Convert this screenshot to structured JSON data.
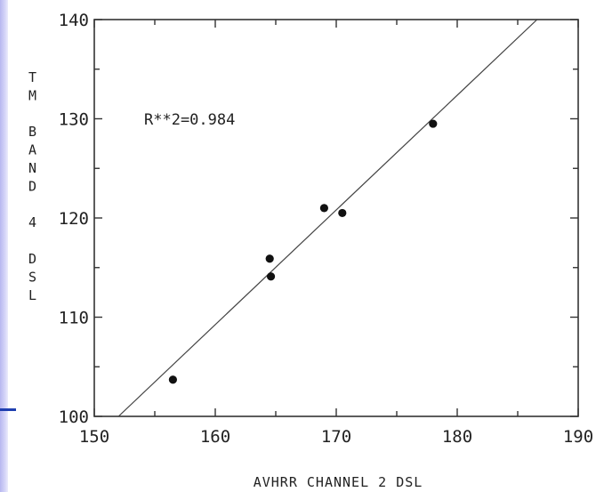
{
  "chart_data": {
    "type": "scatter",
    "title": "",
    "xlabel": "AVHRR CHANNEL 2 DSL",
    "ylabel": "TM BAND 4 DSL",
    "ylabel_lines": [
      "T",
      "M",
      "",
      "B",
      "A",
      "N",
      "D",
      "",
      "4",
      "",
      "D",
      "S",
      "L"
    ],
    "xlim": [
      150,
      190
    ],
    "ylim": [
      100,
      140
    ],
    "x_ticks": [
      150,
      160,
      170,
      180,
      190
    ],
    "y_ticks": [
      100,
      110,
      120,
      130,
      140
    ],
    "grid": false,
    "annotation": "R**2=0.984",
    "points": [
      {
        "x": 156.5,
        "y": 103.7
      },
      {
        "x": 164.5,
        "y": 115.9
      },
      {
        "x": 164.6,
        "y": 114.1
      },
      {
        "x": 169.0,
        "y": 121.0
      },
      {
        "x": 170.5,
        "y": 120.5
      },
      {
        "x": 178.0,
        "y": 129.5
      }
    ],
    "fit_line": {
      "x": [
        152.0,
        186.6
      ],
      "y": [
        100.0,
        140.0
      ]
    }
  }
}
